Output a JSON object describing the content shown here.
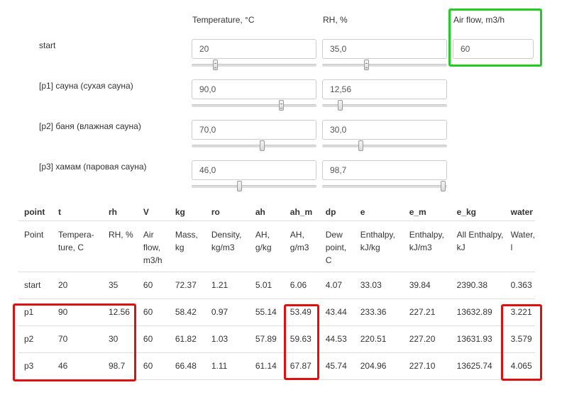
{
  "columns": {
    "temperature": "Temperature, °C",
    "rh": "RH, %",
    "airflow": "Air flow, m3/h"
  },
  "inputs": [
    {
      "label": "start",
      "temperature": "20",
      "rh": "35,0",
      "airflow": "60",
      "temperature_slider": 0.18,
      "rh_slider": 0.35
    },
    {
      "label": "[p1] сауна (сухая сауна)",
      "temperature": "90,0",
      "rh": "12,56",
      "temperature_slider": 0.73,
      "rh_slider": 0.13
    },
    {
      "label": "[p2] баня (влажная сауна)",
      "temperature": "70,0",
      "rh": "30,0",
      "temperature_slider": 0.57,
      "rh_slider": 0.3
    },
    {
      "label": "[p3] хамам (паровая сауна)",
      "temperature": "46,0",
      "rh": "98,7",
      "temperature_slider": 0.38,
      "rh_slider": 0.99
    }
  ],
  "table": {
    "headers": [
      "point",
      "t",
      "rh",
      "V",
      "kg",
      "ro",
      "ah",
      "ah_m",
      "dp",
      "e",
      "e_m",
      "e_kg",
      "water"
    ],
    "descriptions": [
      "Point",
      "Tempera-ture, C",
      "RH, %",
      "Air flow, m3/h",
      "Mass, kg",
      "Density, kg/m3",
      "AH, g/kg",
      "AH, g/m3",
      "Dew point, C",
      "Enthalpy, kJ/kg",
      "Enthalpy, kJ/m3",
      "All Enthalpy, kJ",
      "Water, l"
    ],
    "rows": [
      [
        "start",
        "20",
        "35",
        "60",
        "72.37",
        "1.21",
        "5.01",
        "6.06",
        "4.07",
        "33.03",
        "39.84",
        "2390.38",
        "0.363"
      ],
      [
        "p1",
        "90",
        "12.56",
        "60",
        "58.42",
        "0.97",
        "55.14",
        "53.49",
        "43.44",
        "233.36",
        "227.21",
        "13632.89",
        "3.221"
      ],
      [
        "p2",
        "70",
        "30",
        "60",
        "61.82",
        "1.03",
        "57.89",
        "59.63",
        "44.53",
        "220.51",
        "227.20",
        "13631.93",
        "3.579"
      ],
      [
        "p3",
        "46",
        "98.7",
        "60",
        "66.48",
        "1.11",
        "61.14",
        "67.87",
        "45.74",
        "204.96",
        "227.10",
        "13625.74",
        "4.065"
      ]
    ]
  },
  "colors": {
    "highlight_red": "#e01010",
    "highlight_green": "#22cc22"
  }
}
